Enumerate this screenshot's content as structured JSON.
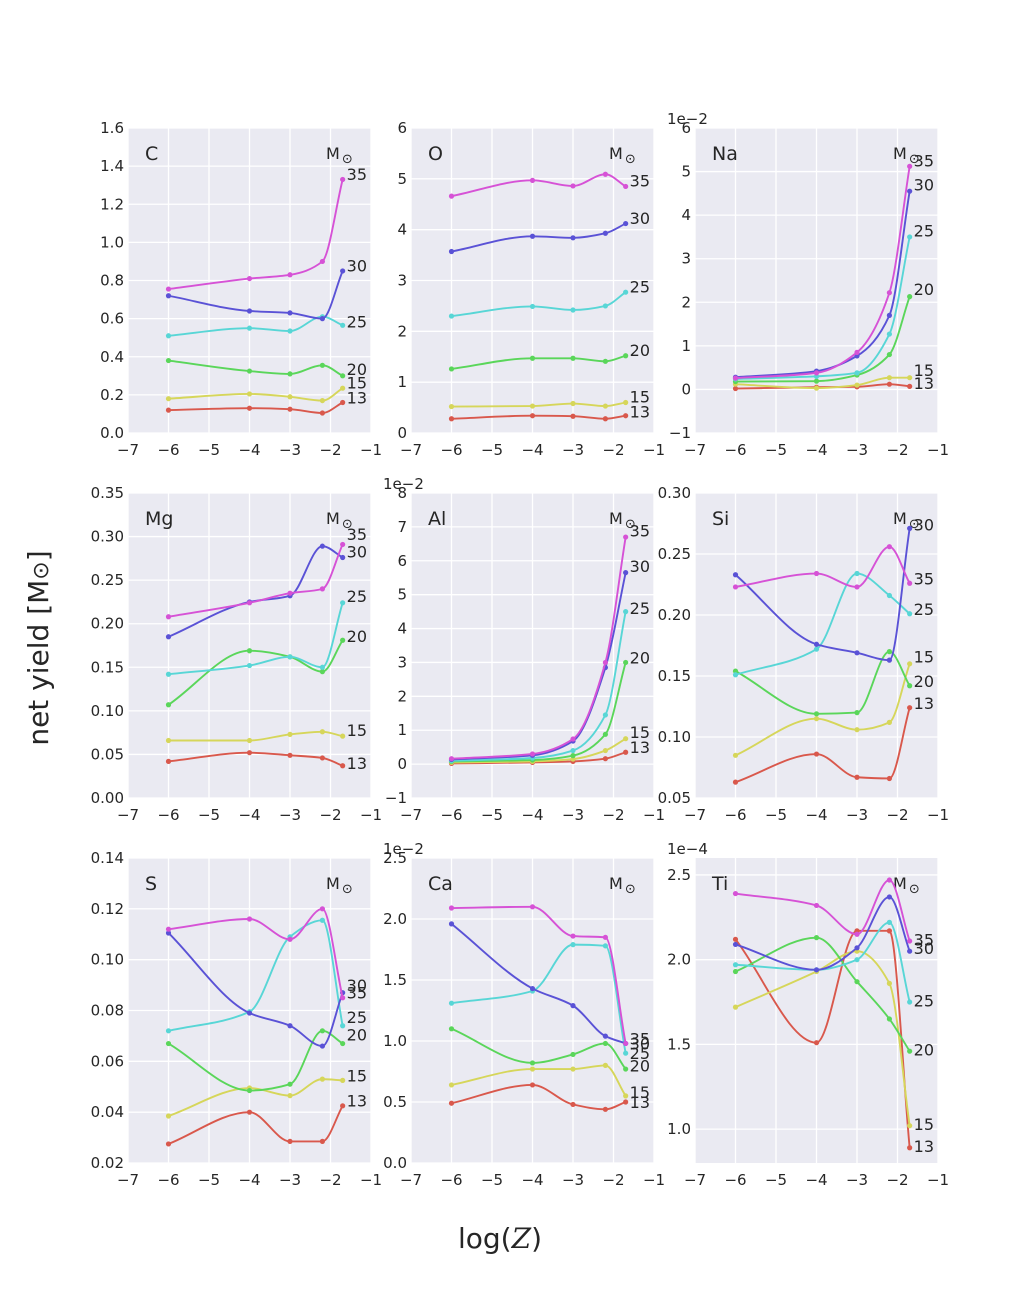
{
  "figure": {
    "ylabel_prefix": "net yield [M",
    "ylabel_symbol": "⊙",
    "ylabel_suffix": "]",
    "xlabel_prefix": "log(",
    "xlabel_var": "Z",
    "xlabel_suffix": ")",
    "unit_label": "M",
    "unit_symbol": "⊙"
  },
  "series_colors": {
    "13": "#d9584c",
    "15": "#d6d65a",
    "20": "#5ad65a",
    "25": "#58d6d6",
    "30": "#5a52d6",
    "35": "#d652d6"
  },
  "chart_data": [
    {
      "type": "line",
      "title": "C",
      "scale_label": "",
      "x": [
        -6,
        -4,
        -3,
        -2.2,
        -1.7
      ],
      "xlim": [
        -7,
        -1
      ],
      "xticks": [
        -7,
        -6,
        -5,
        -4,
        -3,
        -2,
        -1
      ],
      "ylim": [
        0,
        1.6
      ],
      "yticks": [
        0.0,
        0.2,
        0.4,
        0.6,
        0.8,
        1.0,
        1.2,
        1.4,
        1.6
      ],
      "ytick_labels": [
        "0.0",
        "0.2",
        "0.4",
        "0.6",
        "0.8",
        "1.0",
        "1.2",
        "1.4",
        "1.6"
      ],
      "series": [
        {
          "name": "13",
          "values": [
            0.12,
            0.13,
            0.125,
            0.105,
            0.16
          ]
        },
        {
          "name": "15",
          "values": [
            0.18,
            0.205,
            0.19,
            0.17,
            0.235
          ]
        },
        {
          "name": "20",
          "values": [
            0.38,
            0.325,
            0.31,
            0.355,
            0.3
          ]
        },
        {
          "name": "25",
          "values": [
            0.51,
            0.55,
            0.535,
            0.61,
            0.565
          ]
        },
        {
          "name": "30",
          "values": [
            0.72,
            0.64,
            0.63,
            0.6,
            0.85
          ]
        },
        {
          "name": "35",
          "values": [
            0.755,
            0.81,
            0.83,
            0.9,
            1.33
          ]
        }
      ],
      "labels": [
        {
          "text": "35",
          "y": 1.36
        },
        {
          "text": "30",
          "y": 0.88
        },
        {
          "text": "25",
          "y": 0.585
        },
        {
          "text": "20",
          "y": 0.335
        },
        {
          "text": "15",
          "y": 0.265
        },
        {
          "text": "13",
          "y": 0.185
        }
      ]
    },
    {
      "type": "line",
      "title": "O",
      "scale_label": "",
      "x": [
        -6,
        -4,
        -3,
        -2.2,
        -1.7
      ],
      "xlim": [
        -7,
        -1
      ],
      "xticks": [
        -7,
        -6,
        -5,
        -4,
        -3,
        -2,
        -1
      ],
      "ylim": [
        0,
        6
      ],
      "yticks": [
        0,
        1,
        2,
        3,
        4,
        5,
        6
      ],
      "ytick_labels": [
        "0",
        "1",
        "2",
        "3",
        "4",
        "5",
        "6"
      ],
      "series": [
        {
          "name": "13",
          "values": [
            0.28,
            0.34,
            0.33,
            0.28,
            0.34
          ]
        },
        {
          "name": "15",
          "values": [
            0.52,
            0.53,
            0.58,
            0.53,
            0.6
          ]
        },
        {
          "name": "20",
          "values": [
            1.26,
            1.47,
            1.47,
            1.41,
            1.52
          ]
        },
        {
          "name": "25",
          "values": [
            2.3,
            2.49,
            2.42,
            2.5,
            2.77
          ]
        },
        {
          "name": "30",
          "values": [
            3.57,
            3.87,
            3.84,
            3.93,
            4.12
          ]
        },
        {
          "name": "35",
          "values": [
            4.66,
            4.97,
            4.86,
            5.09,
            4.85
          ]
        }
      ],
      "labels": [
        {
          "text": "35",
          "y": 4.97
        },
        {
          "text": "30",
          "y": 4.23
        },
        {
          "text": "25",
          "y": 2.88
        },
        {
          "text": "20",
          "y": 1.63
        },
        {
          "text": "15",
          "y": 0.72
        },
        {
          "text": "13",
          "y": 0.42
        }
      ]
    },
    {
      "type": "line",
      "title": "Na",
      "scale_label": "1e−2",
      "x": [
        -6,
        -4,
        -3,
        -2.2,
        -1.7
      ],
      "xlim": [
        -7,
        -1
      ],
      "xticks": [
        -7,
        -6,
        -5,
        -4,
        -3,
        -2,
        -1
      ],
      "ylim": [
        -1,
        6
      ],
      "yticks": [
        -1,
        0,
        1,
        2,
        3,
        4,
        5,
        6
      ],
      "ytick_labels": [
        "−1",
        "0",
        "1",
        "2",
        "3",
        "4",
        "5",
        "6"
      ],
      "series": [
        {
          "name": "13",
          "values": [
            0.02,
            0.05,
            0.06,
            0.12,
            0.07
          ]
        },
        {
          "name": "15",
          "values": [
            0.12,
            0.03,
            0.1,
            0.27,
            0.27
          ]
        },
        {
          "name": "20",
          "values": [
            0.18,
            0.19,
            0.33,
            0.8,
            2.13
          ]
        },
        {
          "name": "25",
          "values": [
            0.24,
            0.3,
            0.38,
            1.27,
            3.5
          ]
        },
        {
          "name": "30",
          "values": [
            0.28,
            0.42,
            0.77,
            1.7,
            4.55
          ]
        },
        {
          "name": "35",
          "values": [
            0.26,
            0.38,
            0.85,
            2.22,
            5.12
          ]
        }
      ],
      "labels": [
        {
          "text": "35",
          "y": 5.25
        },
        {
          "text": "30",
          "y": 4.7
        },
        {
          "text": "25",
          "y": 3.65
        },
        {
          "text": "20",
          "y": 2.3
        },
        {
          "text": "15",
          "y": 0.45
        },
        {
          "text": "13",
          "y": 0.15
        }
      ]
    },
    {
      "type": "line",
      "title": "Mg",
      "scale_label": "",
      "x": [
        -6,
        -4,
        -3,
        -2.2,
        -1.7
      ],
      "xlim": [
        -7,
        -1
      ],
      "xticks": [
        -7,
        -6,
        -5,
        -4,
        -3,
        -2,
        -1
      ],
      "ylim": [
        0,
        0.35
      ],
      "yticks": [
        0.0,
        0.05,
        0.1,
        0.15,
        0.2,
        0.25,
        0.3,
        0.35
      ],
      "ytick_labels": [
        "0.00",
        "0.05",
        "0.10",
        "0.15",
        "0.20",
        "0.25",
        "0.30",
        "0.35"
      ],
      "series": [
        {
          "name": "13",
          "values": [
            0.042,
            0.052,
            0.049,
            0.046,
            0.037
          ]
        },
        {
          "name": "15",
          "values": [
            0.066,
            0.066,
            0.073,
            0.076,
            0.071
          ]
        },
        {
          "name": "20",
          "values": [
            0.107,
            0.169,
            0.162,
            0.145,
            0.181
          ]
        },
        {
          "name": "25",
          "values": [
            0.142,
            0.152,
            0.162,
            0.15,
            0.224
          ]
        },
        {
          "name": "30",
          "values": [
            0.185,
            0.225,
            0.232,
            0.289,
            0.276
          ]
        },
        {
          "name": "35",
          "values": [
            0.208,
            0.224,
            0.235,
            0.24,
            0.291
          ]
        }
      ],
      "labels": [
        {
          "text": "35",
          "y": 0.303
        },
        {
          "text": "30",
          "y": 0.283
        },
        {
          "text": "25",
          "y": 0.232
        },
        {
          "text": "20",
          "y": 0.186
        },
        {
          "text": "15",
          "y": 0.078
        },
        {
          "text": "13",
          "y": 0.04
        }
      ]
    },
    {
      "type": "line",
      "title": "Al",
      "scale_label": "1e−2",
      "x": [
        -6,
        -4,
        -3,
        -2.2,
        -1.7
      ],
      "xlim": [
        -7,
        -1
      ],
      "xticks": [
        -7,
        -6,
        -5,
        -4,
        -3,
        -2,
        -1
      ],
      "ylim": [
        -1,
        8
      ],
      "yticks": [
        -1,
        0,
        1,
        2,
        3,
        4,
        5,
        6,
        7,
        8
      ],
      "ytick_labels": [
        "−1",
        "0",
        "1",
        "2",
        "3",
        "4",
        "5",
        "6",
        "7",
        "8"
      ],
      "series": [
        {
          "name": "13",
          "values": [
            0.02,
            0.05,
            0.08,
            0.16,
            0.35
          ]
        },
        {
          "name": "15",
          "values": [
            0.05,
            0.08,
            0.15,
            0.4,
            0.75
          ]
        },
        {
          "name": "20",
          "values": [
            0.08,
            0.12,
            0.25,
            0.88,
            3.0
          ]
        },
        {
          "name": "25",
          "values": [
            0.1,
            0.18,
            0.4,
            1.45,
            4.5
          ]
        },
        {
          "name": "30",
          "values": [
            0.14,
            0.26,
            0.68,
            2.85,
            5.65
          ]
        },
        {
          "name": "35",
          "values": [
            0.16,
            0.3,
            0.74,
            3.0,
            6.7
          ]
        }
      ],
      "labels": [
        {
          "text": "35",
          "y": 6.9
        },
        {
          "text": "30",
          "y": 5.85
        },
        {
          "text": "25",
          "y": 4.6
        },
        {
          "text": "20",
          "y": 3.15
        },
        {
          "text": "15",
          "y": 0.95
        },
        {
          "text": "13",
          "y": 0.5
        }
      ]
    },
    {
      "type": "line",
      "title": "Si",
      "scale_label": "",
      "x": [
        -6,
        -4,
        -3,
        -2.2,
        -1.7
      ],
      "xlim": [
        -7,
        -1
      ],
      "xticks": [
        -7,
        -6,
        -5,
        -4,
        -3,
        -2,
        -1
      ],
      "ylim": [
        0.05,
        0.3
      ],
      "yticks": [
        0.05,
        0.1,
        0.15,
        0.2,
        0.25,
        0.3
      ],
      "ytick_labels": [
        "0.05",
        "0.10",
        "0.15",
        "0.20",
        "0.25",
        "0.30"
      ],
      "series": [
        {
          "name": "13",
          "values": [
            0.063,
            0.086,
            0.067,
            0.066,
            0.124
          ]
        },
        {
          "name": "15",
          "values": [
            0.085,
            0.115,
            0.106,
            0.112,
            0.16
          ]
        },
        {
          "name": "20",
          "values": [
            0.154,
            0.119,
            0.12,
            0.17,
            0.142
          ]
        },
        {
          "name": "25",
          "values": [
            0.151,
            0.172,
            0.234,
            0.216,
            0.201
          ]
        },
        {
          "name": "30",
          "values": [
            0.233,
            0.176,
            0.169,
            0.163,
            0.271
          ]
        },
        {
          "name": "35",
          "values": [
            0.223,
            0.234,
            0.223,
            0.256,
            0.226
          ]
        }
      ],
      "labels": [
        {
          "text": "30",
          "y": 0.274
        },
        {
          "text": "35",
          "y": 0.23
        },
        {
          "text": "25",
          "y": 0.205
        },
        {
          "text": "15",
          "y": 0.166
        },
        {
          "text": "20",
          "y": 0.146
        },
        {
          "text": "13",
          "y": 0.128
        }
      ]
    },
    {
      "type": "line",
      "title": "S",
      "scale_label": "",
      "x": [
        -6,
        -4,
        -3,
        -2.2,
        -1.7
      ],
      "xlim": [
        -7,
        -1
      ],
      "xticks": [
        -7,
        -6,
        -5,
        -4,
        -3,
        -2,
        -1
      ],
      "ylim": [
        0.02,
        0.14
      ],
      "yticks": [
        0.02,
        0.04,
        0.06,
        0.08,
        0.1,
        0.12,
        0.14
      ],
      "ytick_labels": [
        "0.02",
        "0.04",
        "0.06",
        "0.08",
        "0.10",
        "0.12",
        "0.14"
      ],
      "series": [
        {
          "name": "13",
          "values": [
            0.0275,
            0.04,
            0.0285,
            0.0285,
            0.0425
          ]
        },
        {
          "name": "15",
          "values": [
            0.0385,
            0.0495,
            0.0465,
            0.053,
            0.0525
          ]
        },
        {
          "name": "20",
          "values": [
            0.067,
            0.0485,
            0.051,
            0.072,
            0.067
          ]
        },
        {
          "name": "25",
          "values": [
            0.072,
            0.0795,
            0.109,
            0.1155,
            0.074
          ]
        },
        {
          "name": "30",
          "values": [
            0.1105,
            0.079,
            0.074,
            0.066,
            0.087
          ]
        },
        {
          "name": "35",
          "values": [
            0.112,
            0.116,
            0.108,
            0.12,
            0.085
          ]
        }
      ],
      "labels": [
        {
          "text": "30",
          "y": 0.09
        },
        {
          "text": "35",
          "y": 0.087
        },
        {
          "text": "25",
          "y": 0.0775
        },
        {
          "text": "20",
          "y": 0.0705
        },
        {
          "text": "15",
          "y": 0.0545
        },
        {
          "text": "13",
          "y": 0.0445
        }
      ]
    },
    {
      "type": "line",
      "title": "Ca",
      "scale_label": "1e−2",
      "x": [
        -6,
        -4,
        -3,
        -2.2,
        -1.7
      ],
      "xlim": [
        -7,
        -1
      ],
      "xticks": [
        -7,
        -6,
        -5,
        -4,
        -3,
        -2,
        -1
      ],
      "ylim": [
        0,
        2.5
      ],
      "yticks": [
        0.0,
        0.5,
        1.0,
        1.5,
        2.0,
        2.5
      ],
      "ytick_labels": [
        "0.0",
        "0.5",
        "1.0",
        "1.5",
        "2.0",
        "2.5"
      ],
      "series": [
        {
          "name": "13",
          "values": [
            0.49,
            0.64,
            0.48,
            0.44,
            0.5
          ]
        },
        {
          "name": "15",
          "values": [
            0.64,
            0.77,
            0.77,
            0.8,
            0.55
          ]
        },
        {
          "name": "20",
          "values": [
            1.1,
            0.82,
            0.89,
            0.98,
            0.77
          ]
        },
        {
          "name": "25",
          "values": [
            1.31,
            1.41,
            1.79,
            1.78,
            0.9
          ]
        },
        {
          "name": "30",
          "values": [
            1.96,
            1.43,
            1.29,
            1.04,
            0.98
          ]
        },
        {
          "name": "35",
          "values": [
            2.09,
            2.1,
            1.86,
            1.85,
            0.98
          ]
        }
      ],
      "labels": [
        {
          "text": "35",
          "y": 1.02
        },
        {
          "text": "30",
          "y": 0.98
        },
        {
          "text": "25",
          "y": 0.9
        },
        {
          "text": "20",
          "y": 0.8
        },
        {
          "text": "15",
          "y": 0.58
        },
        {
          "text": "13",
          "y": 0.5
        }
      ]
    },
    {
      "type": "line",
      "title": "Ti",
      "scale_label": "1e−4",
      "x": [
        -6,
        -4,
        -3,
        -2.2,
        -1.7
      ],
      "xlim": [
        -7,
        -1
      ],
      "xticks": [
        -7,
        -6,
        -5,
        -4,
        -3,
        -2,
        -1
      ],
      "ylim": [
        0.8,
        2.6
      ],
      "yticks": [
        1.0,
        1.5,
        2.0,
        2.5
      ],
      "ytick_labels": [
        "1.0",
        "1.5",
        "2.0",
        "2.5"
      ],
      "series": [
        {
          "name": "13",
          "values": [
            2.12,
            1.51,
            2.17,
            2.17,
            0.89
          ]
        },
        {
          "name": "15",
          "values": [
            1.72,
            1.93,
            2.05,
            1.86,
            1.02
          ]
        },
        {
          "name": "20",
          "values": [
            1.93,
            2.13,
            1.87,
            1.65,
            1.46
          ]
        },
        {
          "name": "25",
          "values": [
            1.97,
            1.94,
            2.0,
            2.22,
            1.75
          ]
        },
        {
          "name": "30",
          "values": [
            2.09,
            1.94,
            2.07,
            2.37,
            2.05
          ]
        },
        {
          "name": "35",
          "values": [
            2.39,
            2.32,
            2.15,
            2.47,
            2.11
          ]
        }
      ],
      "labels": [
        {
          "text": "35",
          "y": 2.12
        },
        {
          "text": "30",
          "y": 2.07
        },
        {
          "text": "25",
          "y": 1.76
        },
        {
          "text": "20",
          "y": 1.47
        },
        {
          "text": "15",
          "y": 1.03
        },
        {
          "text": "13",
          "y": 0.9
        }
      ]
    }
  ]
}
